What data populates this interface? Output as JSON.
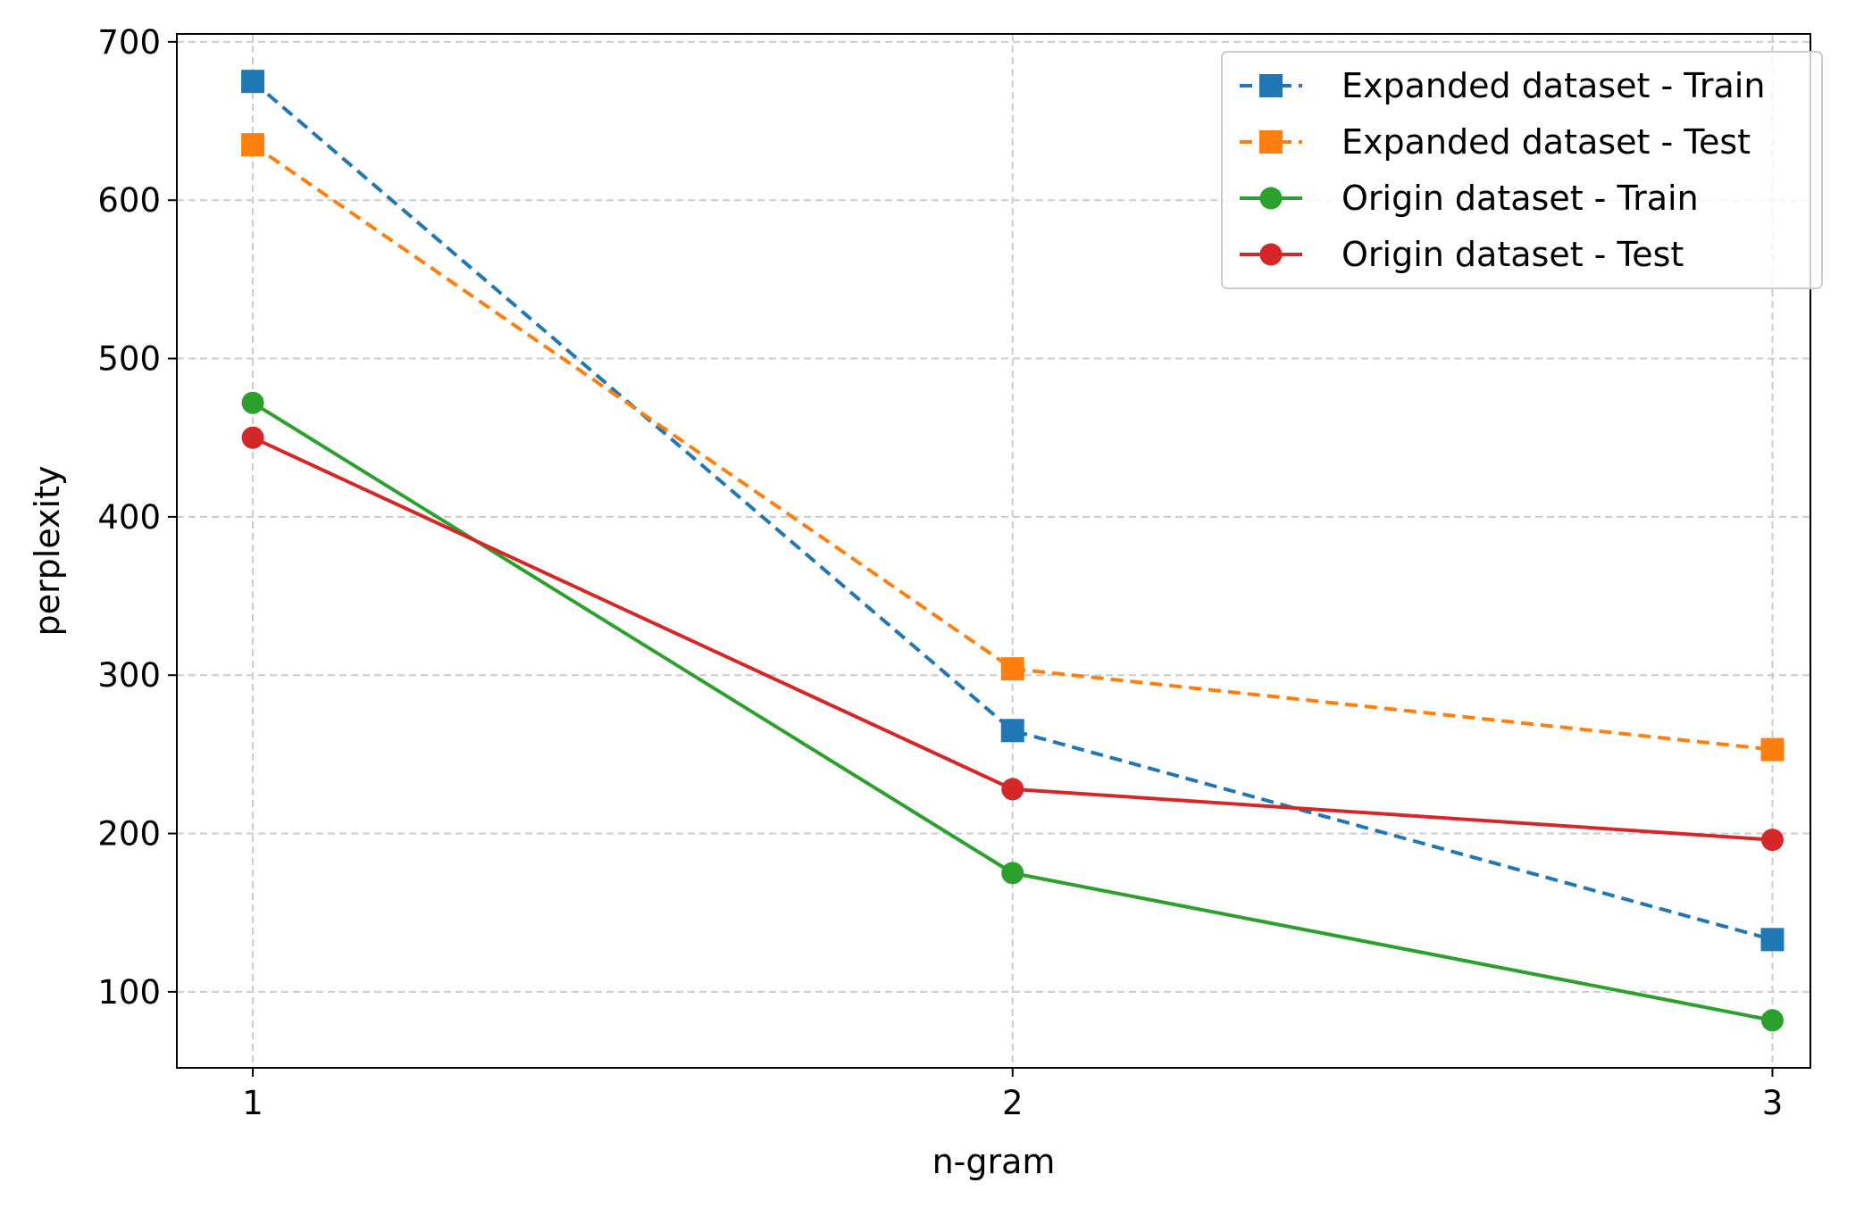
{
  "chart_data": {
    "type": "line",
    "title": "",
    "xlabel": "n-gram",
    "ylabel": "perplexity",
    "x": [
      1,
      2,
      3
    ],
    "xlim": [
      0.9,
      3.05
    ],
    "ylim": [
      52,
      705
    ],
    "xticks": [
      "1",
      "2",
      "3"
    ],
    "yticks": [
      100,
      200,
      300,
      400,
      500,
      600,
      700
    ],
    "grid": true,
    "legend_position": "top-right",
    "series": [
      {
        "name": "Expanded dataset - Train",
        "values": [
          675,
          265,
          133
        ],
        "color": "#1f77b4",
        "dash": true,
        "marker": "square"
      },
      {
        "name": "Expanded dataset - Test",
        "values": [
          635,
          304,
          253
        ],
        "color": "#ff7f0e",
        "dash": true,
        "marker": "square"
      },
      {
        "name": "Origin dataset - Train",
        "values": [
          472,
          175,
          82
        ],
        "color": "#2ca02c",
        "dash": false,
        "marker": "circle"
      },
      {
        "name": "Origin dataset - Test",
        "values": [
          450,
          228,
          196
        ],
        "color": "#d62728",
        "dash": false,
        "marker": "circle"
      }
    ]
  }
}
